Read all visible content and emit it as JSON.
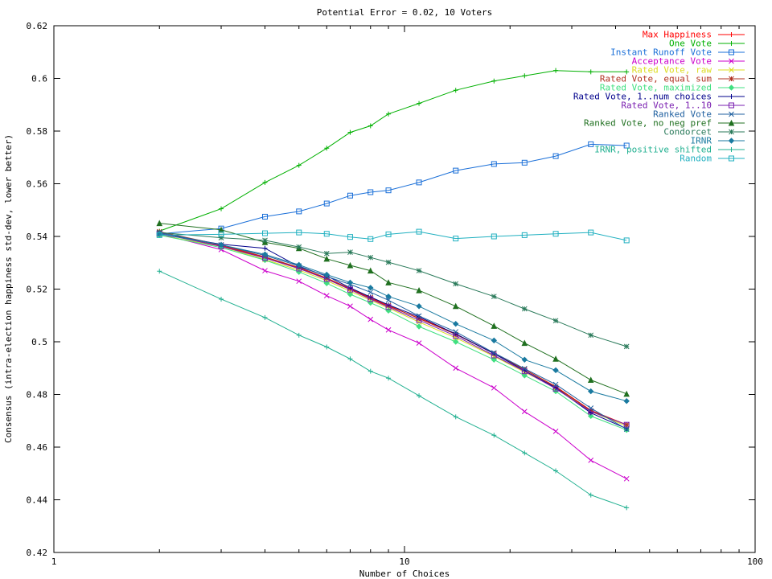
{
  "chart_data": {
    "type": "line",
    "title": "Potential Error = 0.02, 10 Voters",
    "xlabel": "Number of Choices",
    "ylabel": "Consensus (intra-election happiness std-dev, lower better)",
    "xscale": "log",
    "xlim": [
      1,
      100
    ],
    "ylim": [
      0.42,
      0.62
    ],
    "xticks": [
      1,
      10,
      100
    ],
    "yticks": [
      0.42,
      0.44,
      0.46,
      0.48,
      0.5,
      0.52,
      0.54,
      0.56,
      0.58,
      0.6,
      0.62
    ],
    "legend_position": "top-right",
    "grid": false,
    "x": [
      2,
      3,
      4,
      5,
      6,
      7,
      8,
      9,
      11,
      14,
      18,
      22,
      27,
      34,
      43
    ],
    "series": [
      {
        "name": "Max Happiness",
        "color": "#ff0000",
        "marker": "plus",
        "values": [
          0.5415,
          0.5365,
          0.532,
          0.528,
          0.524,
          0.52,
          0.5165,
          0.5135,
          0.509,
          0.503,
          0.4955,
          0.4895,
          0.483,
          0.474,
          0.4685
        ]
      },
      {
        "name": "One Vote",
        "color": "#00b000",
        "marker": "plus",
        "values": [
          0.542,
          0.5505,
          0.5605,
          0.567,
          0.5735,
          0.5795,
          0.582,
          0.5865,
          0.5905,
          0.5955,
          0.599,
          0.601,
          0.603,
          0.6025,
          0.6025
        ]
      },
      {
        "name": "Instant Runoff Vote",
        "color": "#1a6fd8",
        "marker": "square",
        "values": [
          0.541,
          0.543,
          0.5475,
          0.5495,
          0.5525,
          0.5555,
          0.5568,
          0.5575,
          0.5605,
          0.565,
          0.5675,
          0.568,
          0.5705,
          0.575,
          0.5745
        ]
      },
      {
        "name": "Acceptance Vote",
        "color": "#cc00cc",
        "marker": "cross",
        "values": [
          0.541,
          0.535,
          0.527,
          0.523,
          0.5175,
          0.5135,
          0.5085,
          0.5045,
          0.4995,
          0.49,
          0.4825,
          0.4735,
          0.466,
          0.455,
          0.448
        ]
      },
      {
        "name": "Rated Vote, raw",
        "color": "#dcdc20",
        "marker": "cross",
        "values": [
          0.5405,
          0.5362,
          0.5312,
          0.5272,
          0.5232,
          0.5192,
          0.5158,
          0.5128,
          0.5075,
          0.5015,
          0.4945,
          0.4885,
          0.4825,
          0.4735,
          0.468
        ]
      },
      {
        "name": "Rated Vote, equal sum",
        "color": "#b03020",
        "marker": "star",
        "values": [
          0.5418,
          0.5368,
          0.5322,
          0.5282,
          0.5242,
          0.5202,
          0.5168,
          0.5138,
          0.5088,
          0.5028,
          0.4955,
          0.4895,
          0.4828,
          0.4738,
          0.4685
        ]
      },
      {
        "name": "Rated Vote, maximized",
        "color": "#40e080",
        "marker": "diamond",
        "values": [
          0.5405,
          0.5358,
          0.531,
          0.5265,
          0.5222,
          0.518,
          0.5148,
          0.5118,
          0.5058,
          0.5,
          0.4932,
          0.4872,
          0.4812,
          0.4718,
          0.4665
        ]
      },
      {
        "name": "Rated Vote, 1..num choices",
        "color": "#00008b",
        "marker": "plus",
        "values": [
          0.541,
          0.537,
          0.5355,
          0.5285,
          0.525,
          0.5205,
          0.517,
          0.514,
          0.5095,
          0.503,
          0.4955,
          0.489,
          0.4825,
          0.473,
          0.467
        ]
      },
      {
        "name": "Rated Vote, 1..10",
        "color": "#7a1fb0",
        "marker": "square",
        "values": [
          0.5412,
          0.5362,
          0.5318,
          0.5278,
          0.5238,
          0.5198,
          0.5162,
          0.5132,
          0.5082,
          0.5022,
          0.4948,
          0.4888,
          0.4822,
          0.4735,
          0.4685
        ]
      },
      {
        "name": "Ranked Vote",
        "color": "#2060a0",
        "marker": "cross",
        "values": [
          0.5415,
          0.5368,
          0.5328,
          0.5288,
          0.5248,
          0.5218,
          0.5188,
          0.5158,
          0.5098,
          0.5038,
          0.4958,
          0.4898,
          0.4838,
          0.4748,
          0.4668
        ]
      },
      {
        "name": "Ranked Vote, no neg pref",
        "color": "#207020",
        "marker": "triangle",
        "values": [
          0.545,
          0.5425,
          0.5378,
          0.5355,
          0.5315,
          0.529,
          0.527,
          0.5225,
          0.5195,
          0.5135,
          0.506,
          0.4995,
          0.4935,
          0.4855,
          0.4802
        ]
      },
      {
        "name": "Condorcet",
        "color": "#2a7a5a",
        "marker": "star",
        "values": [
          0.5415,
          0.5395,
          0.5385,
          0.536,
          0.5335,
          0.534,
          0.532,
          0.5302,
          0.527,
          0.522,
          0.5172,
          0.5125,
          0.508,
          0.5025,
          0.4982
        ]
      },
      {
        "name": "IRNR",
        "color": "#1a7aa0",
        "marker": "diamond",
        "values": [
          0.541,
          0.5368,
          0.5332,
          0.5292,
          0.5255,
          0.5225,
          0.5205,
          0.5172,
          0.5135,
          0.5068,
          0.5005,
          0.4932,
          0.4892,
          0.4812,
          0.4775
        ]
      },
      {
        "name": "IRNR, positive shifted",
        "color": "#20b090",
        "marker": "plus",
        "values": [
          0.5268,
          0.5162,
          0.5092,
          0.5025,
          0.498,
          0.4935,
          0.4888,
          0.4862,
          0.4795,
          0.4715,
          0.4645,
          0.4578,
          0.451,
          0.4418,
          0.437
        ]
      },
      {
        "name": "Random",
        "color": "#20b0c0",
        "marker": "square",
        "values": [
          0.5405,
          0.5408,
          0.5412,
          0.5415,
          0.541,
          0.5398,
          0.539,
          0.5408,
          0.5418,
          0.5392,
          0.54,
          0.5405,
          0.541,
          0.5415,
          0.5385
        ]
      }
    ]
  }
}
